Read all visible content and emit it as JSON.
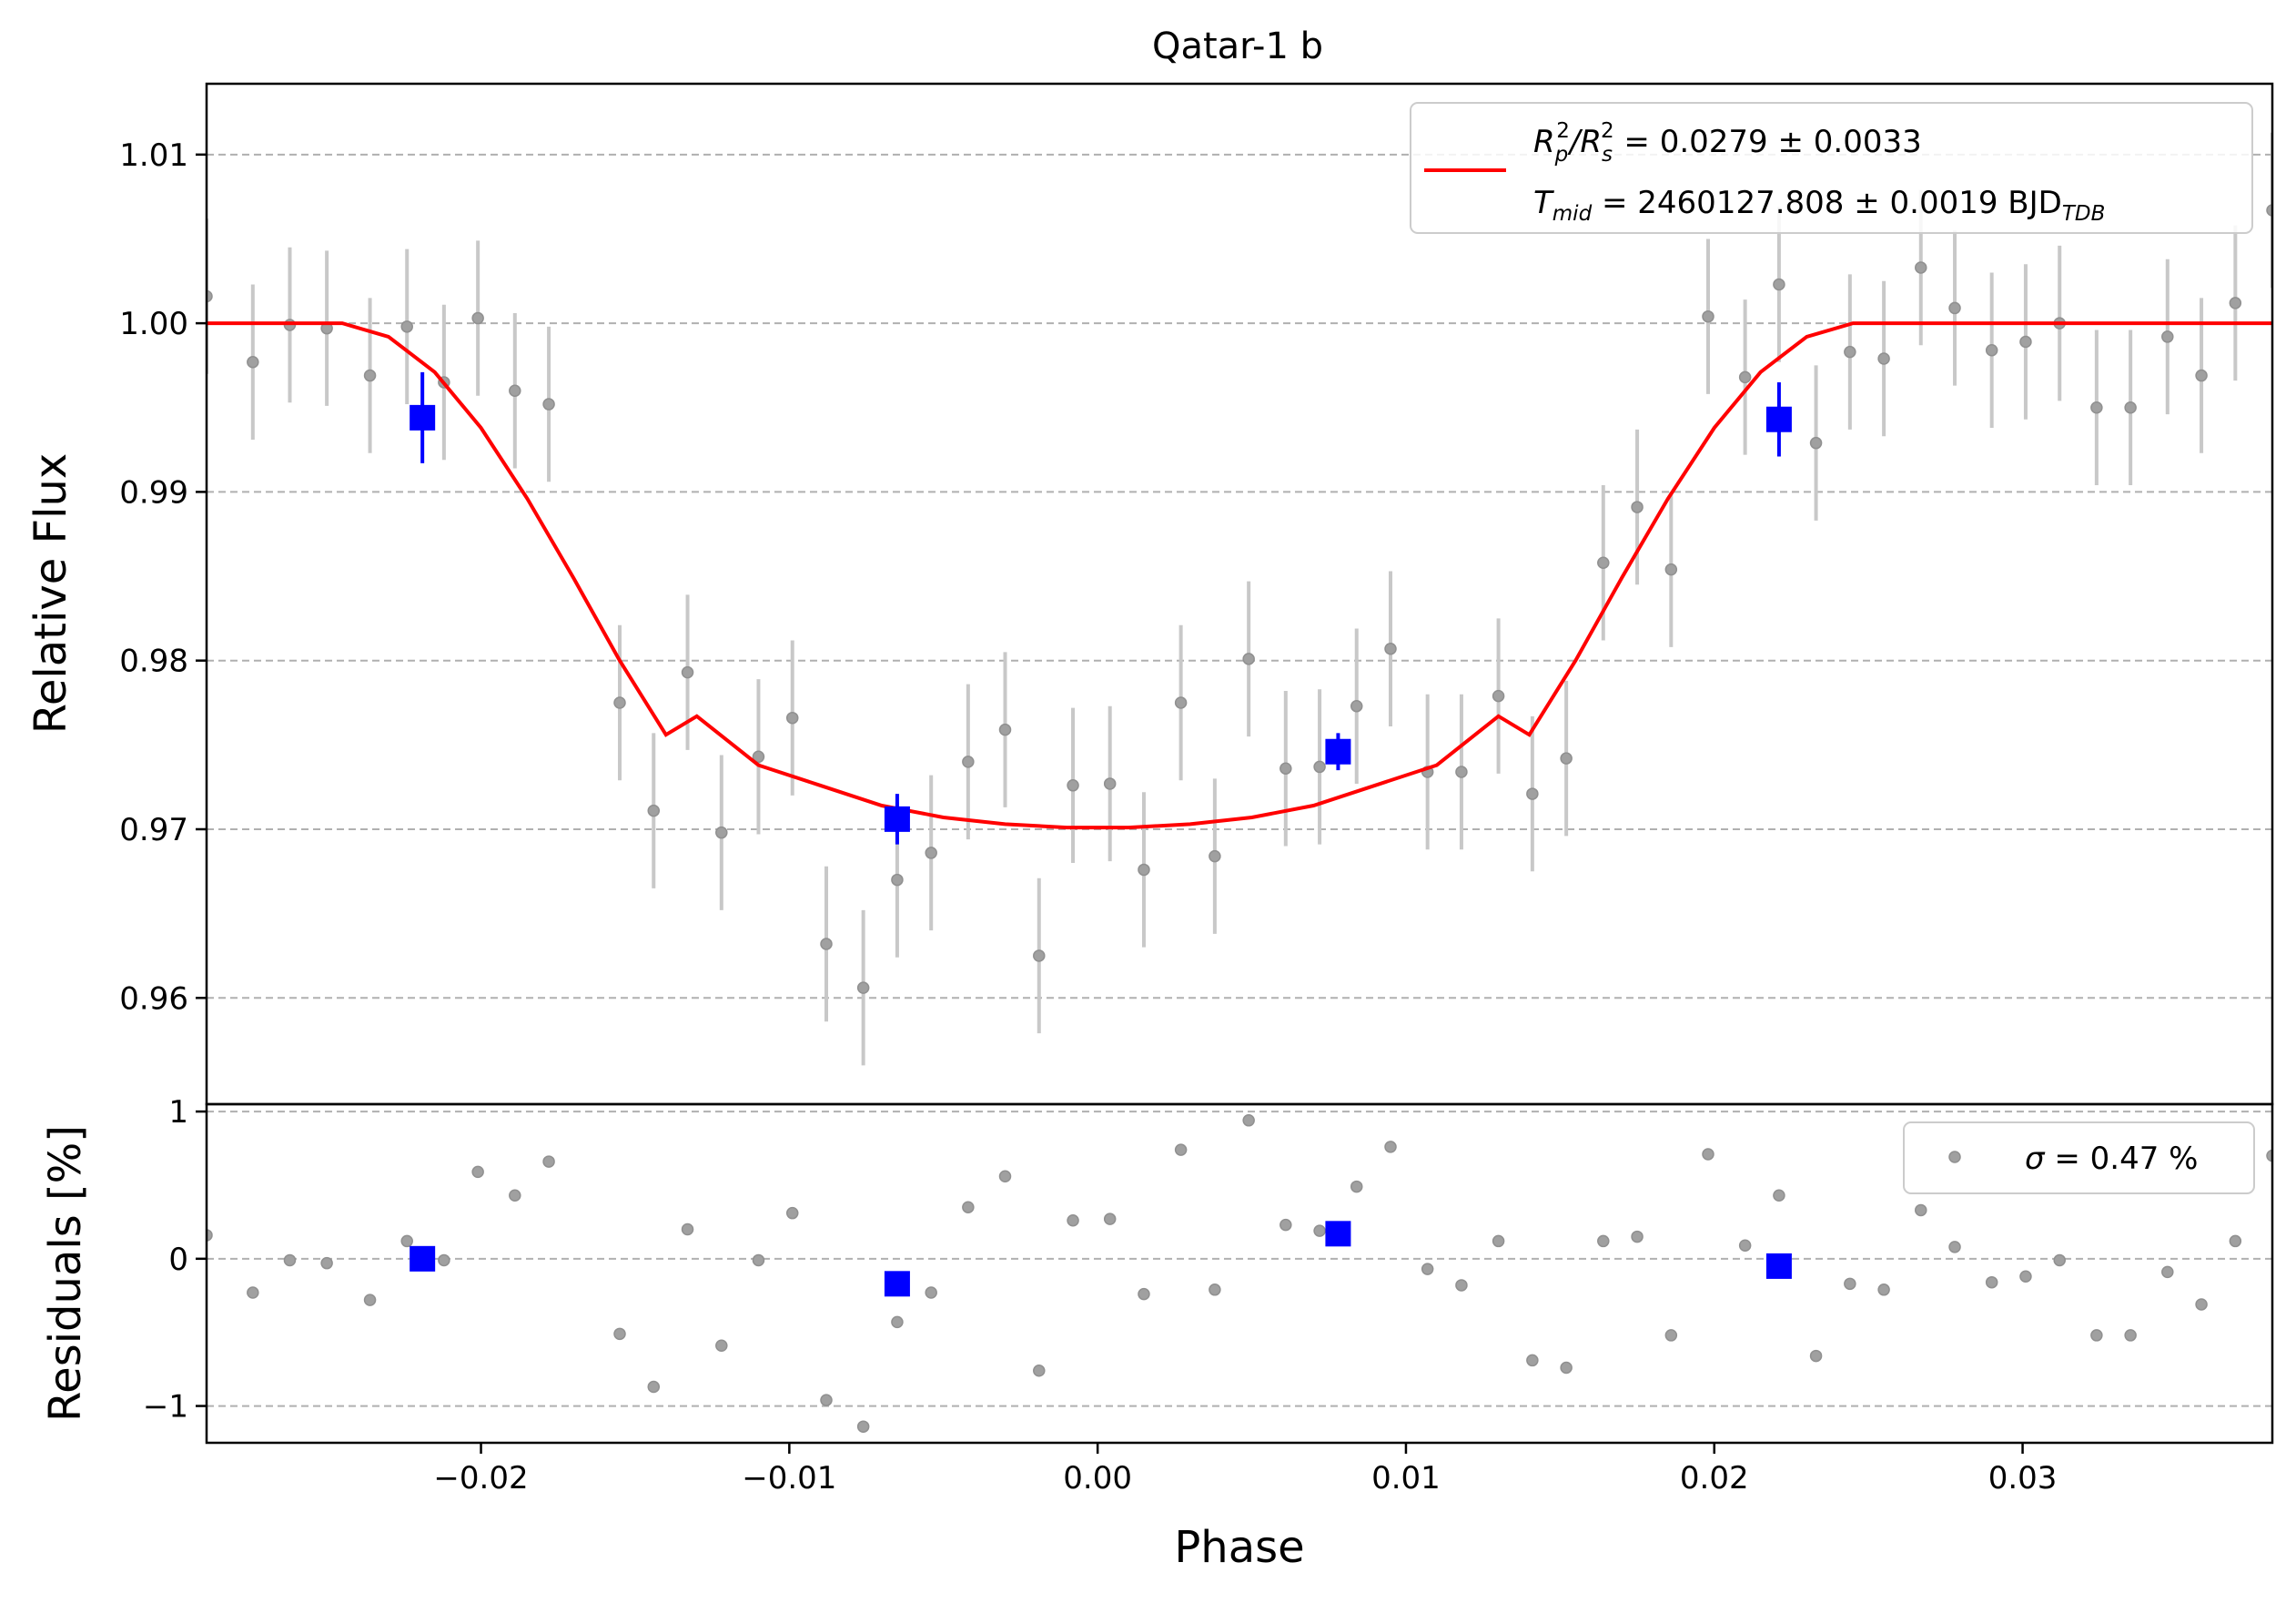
{
  "chart_data": {
    "type": "scatter",
    "title": "Qatar-1 b",
    "xlabel": "Phase",
    "xlim": [
      -0.0289,
      0.0381
    ],
    "xticks": [
      -0.02,
      -0.01,
      0.0,
      0.01,
      0.02,
      0.03
    ],
    "xtick_labels": [
      "−0.02",
      "−0.01",
      "0.00",
      "0.01",
      "0.02",
      "0.03"
    ],
    "grid": "horizontal dashed",
    "colors": {
      "model": "#ff0000",
      "binned": "#0000ff",
      "raw": "#a0a0a0",
      "errorbar": "#c8c8c8",
      "grid": "#b0b0b0"
    },
    "top_panel": {
      "ylabel": "Relative Flux",
      "ylim": [
        0.9537,
        1.0142
      ],
      "yticks": [
        0.96,
        0.97,
        0.98,
        0.99,
        1.0,
        1.01
      ],
      "ytick_labels": [
        "0.96",
        "0.97",
        "0.98",
        "0.99",
        "1.00",
        "1.01"
      ],
      "raw_error": 0.0046,
      "raw_data": {
        "x": [
          -0.0289,
          -0.0274,
          -0.0262,
          -0.025,
          -0.0236,
          -0.0224,
          -0.0212,
          -0.0201,
          -0.0189,
          -0.0178,
          -0.0155,
          -0.0144,
          -0.0133,
          -0.0122,
          -0.011,
          -0.0099,
          -0.0088,
          -0.0076,
          -0.0065,
          -0.0054,
          -0.0042,
          -0.003,
          -0.0019,
          -0.0008,
          0.0004,
          0.0015,
          0.0027,
          0.0038,
          0.0049,
          0.0061,
          0.0072,
          0.0084,
          0.0095,
          0.0107,
          0.0118,
          0.013,
          0.0141,
          0.0152,
          0.0164,
          0.0175,
          0.0186,
          0.0198,
          0.021,
          0.0221,
          0.0233,
          0.0244,
          0.0255,
          0.0267,
          0.0278,
          0.029,
          0.0301,
          0.0312,
          0.0324,
          0.0335,
          0.0347,
          0.0358,
          0.0369,
          0.0381
        ],
        "y": [
          1.0016,
          0.9977,
          0.9999,
          0.9997,
          0.9969,
          0.9998,
          0.9965,
          1.0003,
          0.996,
          0.9952,
          0.9775,
          0.9711,
          0.9793,
          0.9698,
          0.9743,
          0.9766,
          0.9632,
          0.9606,
          0.967,
          0.9686,
          0.974,
          0.9759,
          0.9625,
          0.9726,
          0.9727,
          0.9676,
          0.9775,
          0.9684,
          0.9801,
          0.9736,
          0.9737,
          0.9773,
          0.9807,
          0.9734,
          0.9734,
          0.9779,
          0.9721,
          0.9742,
          0.9858,
          0.9891,
          0.9854,
          1.0004,
          0.9968,
          1.0023,
          0.9929,
          0.9983,
          0.9979,
          1.0033,
          1.0009,
          0.9984,
          0.9989,
          1.0,
          0.995,
          0.995,
          0.9992,
          0.9969,
          1.0012,
          1.0067
        ]
      },
      "binned_data": {
        "x": [
          -0.0219,
          -0.0065,
          0.0078,
          0.0221
        ],
        "y": [
          0.9944,
          0.9706,
          0.9746,
          0.9943
        ],
        "yerr": [
          0.0027,
          0.0015,
          0.0011,
          0.0022
        ]
      },
      "model": {
        "x": [
          -0.0289,
          -0.0245,
          -0.023,
          -0.0215,
          -0.02,
          -0.0185,
          -0.017,
          -0.0155,
          -0.014,
          -0.013,
          -0.011,
          -0.009,
          -0.007,
          -0.005,
          -0.003,
          -0.001,
          0.0,
          0.001,
          0.003,
          0.005,
          0.007,
          0.009,
          0.011,
          0.013,
          0.014,
          0.0155,
          0.017,
          0.0185,
          0.02,
          0.0215,
          0.023,
          0.0245,
          0.0381
        ],
        "y": [
          1.0,
          1.0,
          0.9992,
          0.9971,
          0.9938,
          0.9896,
          0.9849,
          0.98,
          0.9756,
          0.9767,
          0.9738,
          0.9726,
          0.9714,
          0.9707,
          0.9703,
          0.9701,
          0.9701,
          0.9701,
          0.9703,
          0.9707,
          0.9714,
          0.9726,
          0.9738,
          0.9767,
          0.9756,
          0.98,
          0.9849,
          0.9896,
          0.9938,
          0.9971,
          0.9992,
          1.0,
          1.0
        ]
      },
      "legend": {
        "placement": "upper-right",
        "line1": {
          "main": "R",
          "sub_p": "p",
          "sup_2a": "2",
          "slash": "/R",
          "sub_s": "s",
          "sup_2b": "2",
          "value": " = 0.0279 ± 0.0033"
        },
        "line2": {
          "main": "T",
          "sub": "mid",
          "value": " = 2460127.808 ± 0.0019 BJD",
          "unit_sub": "TDB"
        }
      }
    },
    "bottom_panel": {
      "ylabel": "Residuals [%]",
      "ylim": [
        -1.25,
        1.05
      ],
      "yticks": [
        -1,
        0,
        1
      ],
      "ytick_labels": [
        "−1",
        "0",
        "1"
      ],
      "raw_residuals": [
        0.16,
        -0.23,
        -0.01,
        -0.03,
        -0.28,
        0.12,
        -0.01,
        0.59,
        0.43,
        0.66,
        -0.51,
        -0.87,
        0.2,
        -0.59,
        -0.01,
        0.31,
        -0.96,
        -1.14,
        -0.43,
        -0.23,
        0.35,
        0.56,
        -0.76,
        0.26,
        0.27,
        -0.24,
        0.74,
        -0.21,
        0.94,
        0.23,
        0.19,
        0.49,
        0.76,
        -0.07,
        -0.18,
        0.12,
        -0.69,
        -0.74,
        0.12,
        0.15,
        -0.52,
        0.71,
        0.09,
        0.43,
        -0.66,
        -0.17,
        -0.21,
        0.33,
        0.08,
        -0.16,
        -0.12,
        -0.01,
        -0.52,
        -0.52,
        -0.09,
        -0.31,
        0.12,
        0.7
      ],
      "binned_residuals": [
        0.0,
        -0.17,
        0.17,
        -0.05
      ],
      "legend": {
        "placement": "upper-right",
        "symbol": "σ",
        "value": " = 0.47 %"
      }
    }
  }
}
